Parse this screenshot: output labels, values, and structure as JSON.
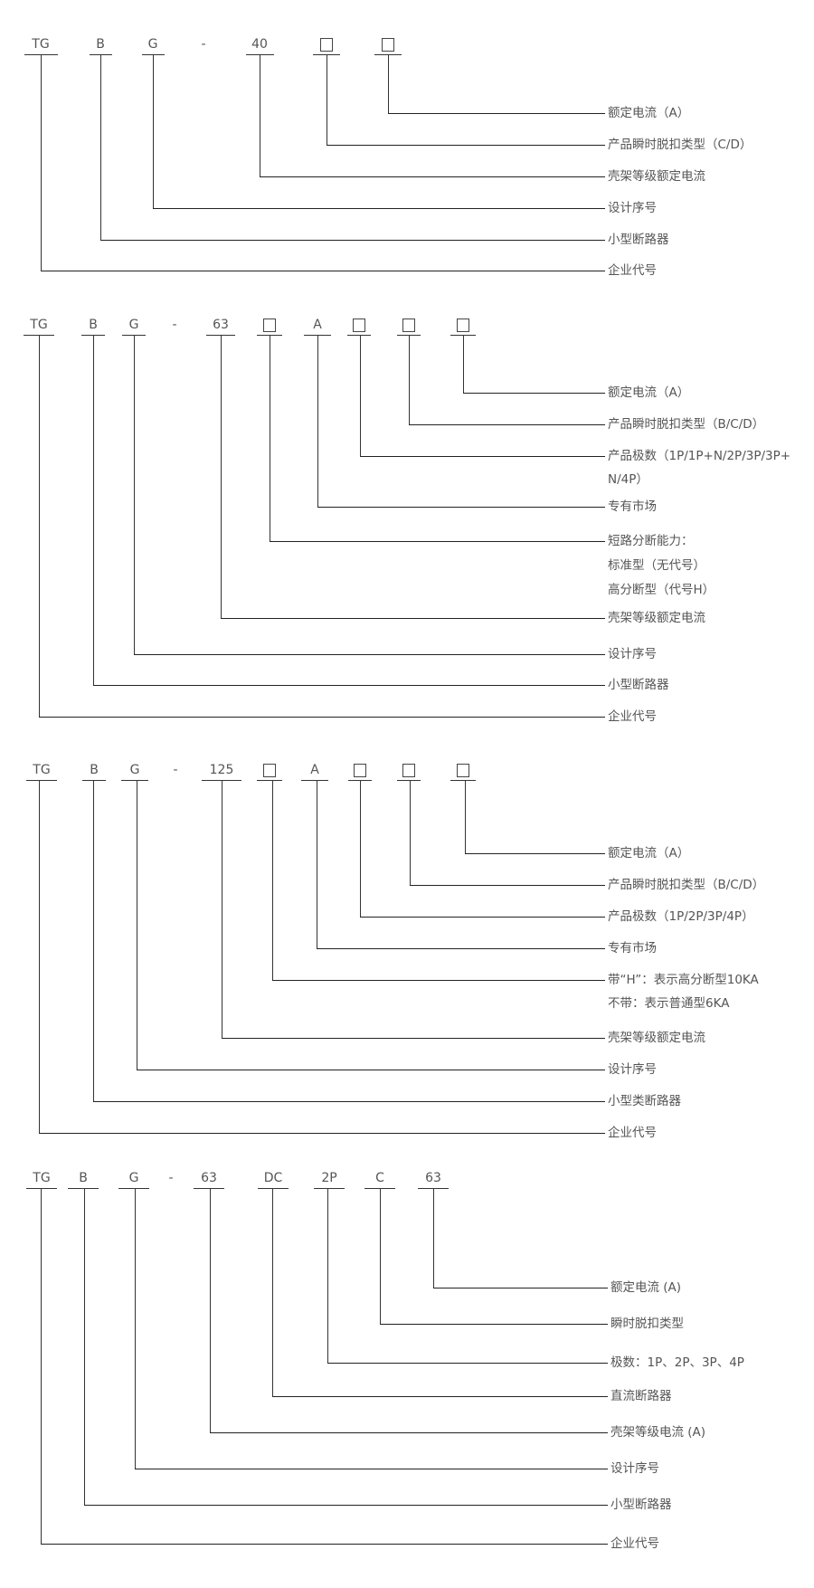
{
  "sections": [
    {
      "codes": [
        "TG",
        "B",
        "G",
        "-",
        "40",
        "□",
        "□"
      ],
      "items": [
        {
          "code": "□2",
          "label": "额定电流（A）"
        },
        {
          "code": "□1",
          "label": "产品瞬时脱扣类型（C/D）"
        },
        {
          "code": "40",
          "label": "壳架等级额定电流"
        },
        {
          "code": "G",
          "label": "设计序号"
        },
        {
          "code": "B",
          "label": "小型断路器"
        },
        {
          "code": "TG",
          "label": "企业代号"
        }
      ]
    },
    {
      "codes": [
        "TG",
        "B",
        "G",
        "-",
        "63",
        "□",
        "A",
        "□",
        "□",
        "□"
      ],
      "items": [
        {
          "code": "□4",
          "label": "额定电流（A）"
        },
        {
          "code": "□3",
          "label": "产品瞬时脱扣类型（B/C/D）"
        },
        {
          "code": "□2",
          "label": "产品极数（1P/1P+N/2P/3P/3P+",
          "extra": [
            "N/4P）"
          ]
        },
        {
          "code": "A",
          "label": "专有市场"
        },
        {
          "code": "□1",
          "label": "短路分断能力：",
          "extra": [
            "标准型（无代号）",
            "高分断型（代号H）"
          ]
        },
        {
          "code": "63",
          "label": "壳架等级额定电流"
        },
        {
          "code": "G",
          "label": "设计序号"
        },
        {
          "code": "B",
          "label": "小型断路器"
        },
        {
          "code": "TG",
          "label": "企业代号"
        }
      ]
    },
    {
      "codes": [
        "TG",
        "B",
        "G",
        "-",
        "125",
        "□",
        "A",
        "□",
        "□",
        "□"
      ],
      "items": [
        {
          "code": "□4",
          "label": "额定电流（A）"
        },
        {
          "code": "□3",
          "label": "产品瞬时脱扣类型（B/C/D）"
        },
        {
          "code": "□2",
          "label": "产品极数（1P/2P/3P/4P）"
        },
        {
          "code": "A",
          "label": "专有市场"
        },
        {
          "code": "□1",
          "label": "带“H”：表示高分断型10KA",
          "extra": [
            "不带：表示普通型6KA"
          ]
        },
        {
          "code": "125",
          "label": "壳架等级额定电流"
        },
        {
          "code": "G",
          "label": "设计序号"
        },
        {
          "code": "B",
          "label": "小型类断路器"
        },
        {
          "code": "TG",
          "label": "企业代号"
        }
      ]
    },
    {
      "codes": [
        "TG",
        "B",
        "G",
        "-",
        "63",
        "DC",
        "2P",
        "C",
        "63"
      ],
      "items": [
        {
          "code": "63",
          "label": "额定电流 (A)"
        },
        {
          "code": "C",
          "label": "瞬时脱扣类型"
        },
        {
          "code": "2P",
          "label": "极数：1P、2P、3P、4P"
        },
        {
          "code": "DC",
          "label": "直流断路器"
        },
        {
          "code": "63",
          "label": "壳架等级电流 (A)"
        },
        {
          "code": "G",
          "label": "设计序号"
        },
        {
          "code": "B",
          "label": "小型断路器"
        },
        {
          "code": "TG",
          "label": "企业代号"
        }
      ]
    }
  ]
}
